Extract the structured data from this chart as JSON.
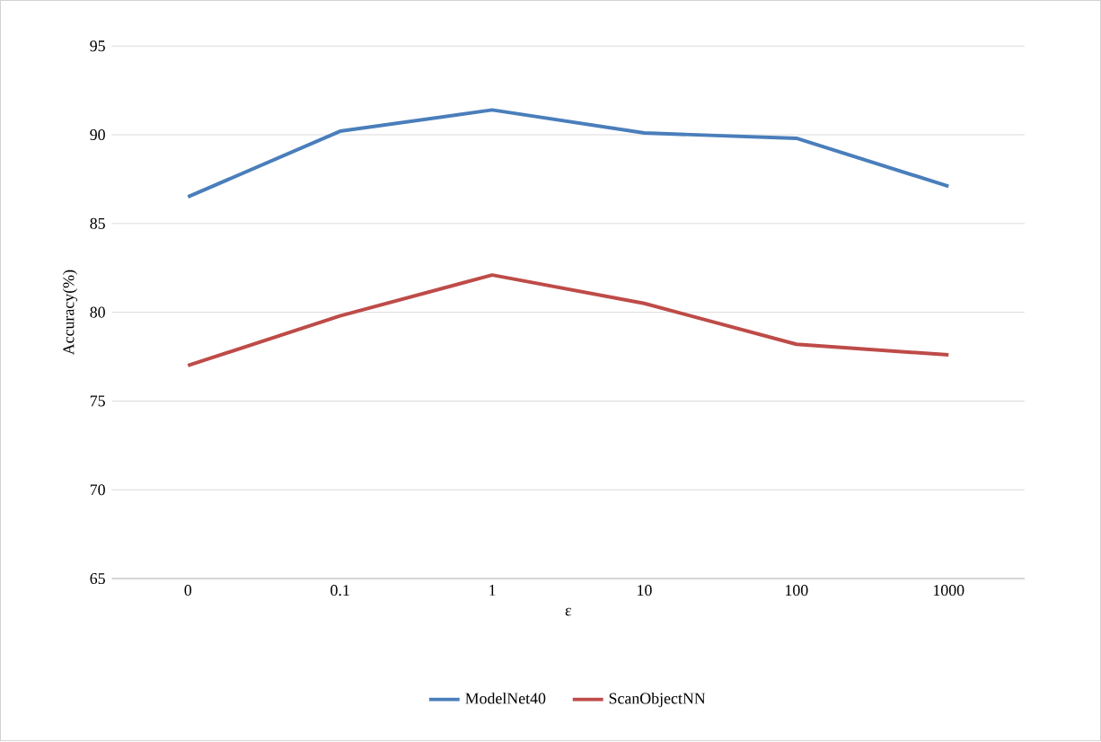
{
  "chart_data": {
    "type": "line",
    "xlabel": "ε",
    "ylabel": "Accuracy(%)",
    "categories": [
      "0",
      "0.1",
      "1",
      "10",
      "100",
      "1000"
    ],
    "series": [
      {
        "name": "ModelNet40",
        "color": "#4a7ebb",
        "values": [
          86.5,
          90.2,
          91.4,
          90.1,
          89.8,
          87.1
        ]
      },
      {
        "name": "ScanObjectNN",
        "color": "#be4b48",
        "values": [
          77.0,
          79.8,
          82.1,
          80.5,
          78.2,
          77.6
        ]
      }
    ],
    "ylim": [
      65,
      95
    ],
    "yticks": [
      65,
      70,
      75,
      80,
      85,
      90,
      95
    ],
    "grid": "y",
    "legend": "bottom",
    "marker": "none",
    "line_style": "solid"
  }
}
